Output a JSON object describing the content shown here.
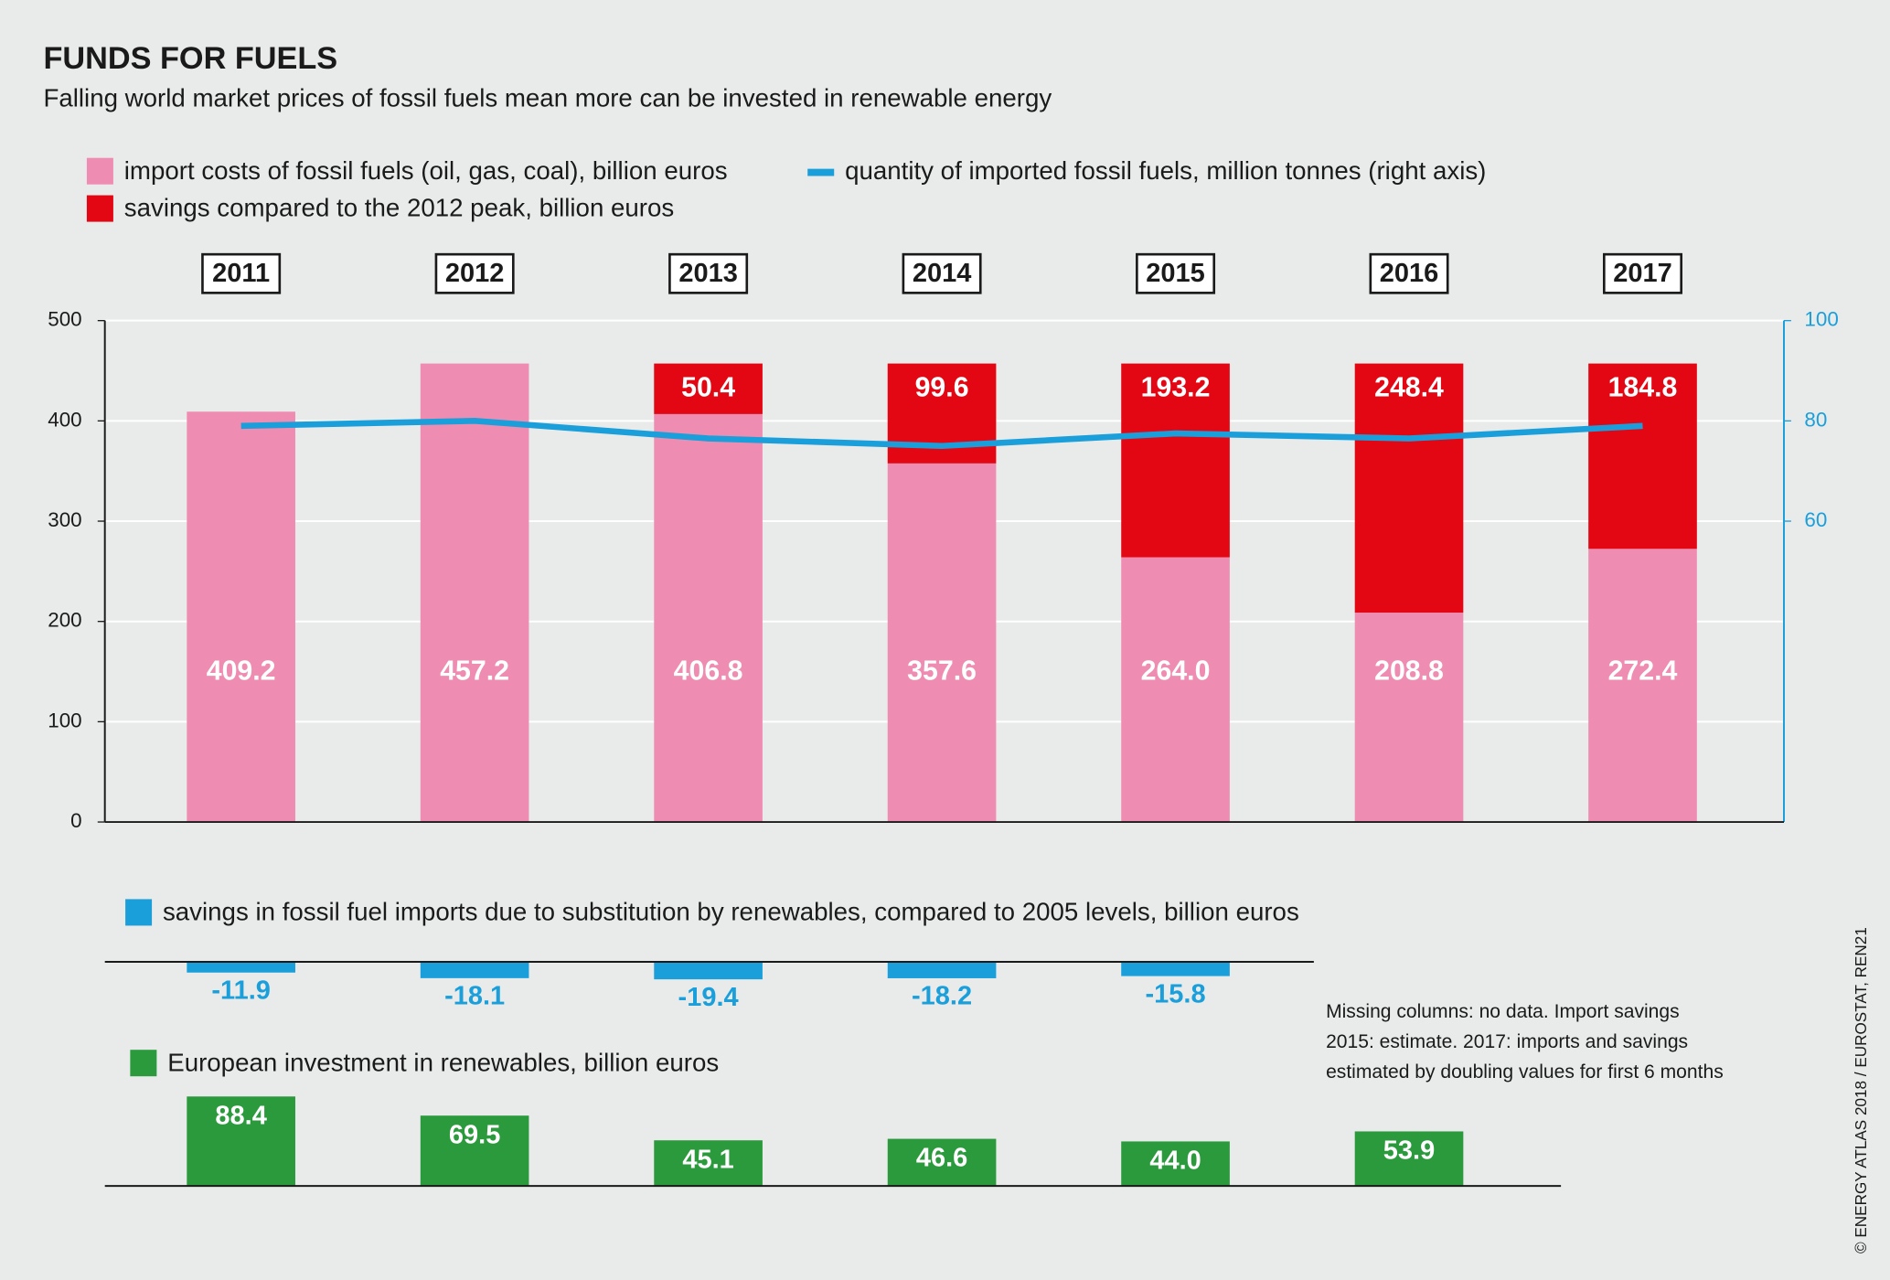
{
  "chart_data": [
    {
      "type": "bar",
      "stacked": true,
      "title": "FUNDS FOR FUELS",
      "subtitle": "Falling world market prices of fossil fuels mean more can be invested in renewable energy",
      "categories": [
        "2011",
        "2012",
        "2013",
        "2014",
        "2015",
        "2016",
        "2017"
      ],
      "series": [
        {
          "name": "import costs of fossil fuels (oil, gas, coal), billion euros",
          "color": "#ee8db1",
          "values": [
            409.2,
            457.2,
            406.8,
            357.6,
            264.0,
            208.8,
            272.4
          ],
          "value_labels": [
            "409.2",
            "457.2",
            "406.8",
            "357.6",
            "264.0",
            "208.8",
            "272.4"
          ]
        },
        {
          "name": "savings compared to the 2012 peak, billion euros",
          "color": "#e30613",
          "values": [
            null,
            null,
            50.4,
            99.6,
            193.2,
            248.4,
            184.8
          ],
          "value_labels": [
            null,
            null,
            "50.4",
            "99.6",
            "193.2",
            "248.4",
            "184.8"
          ]
        },
        {
          "name": "quantity of imported fossil fuels, million tonnes (right axis)",
          "color": "#1a9fdb",
          "type": "line",
          "axis": "y2",
          "values": [
            79,
            80,
            76.5,
            75,
            77.5,
            76.5,
            79
          ]
        }
      ],
      "ylim": [
        0,
        500
      ],
      "yticks": [
        0,
        100,
        200,
        300,
        400,
        500
      ],
      "y2lim": [
        0,
        100
      ],
      "y2ticks": [
        60,
        80,
        100
      ],
      "grid": true,
      "note": [
        "Missing columns: no data. Import savings",
        "2015: estimate. 2017: imports and savings",
        "estimated by doubling values for first 6 months"
      ],
      "source": "© ENERGY ATLAS 2018 / EUROSTAT, REN21"
    },
    {
      "type": "bar",
      "series": [
        {
          "name": "savings in fossil fuel imports due to substitution by renewables, compared to 2005 levels, billion euros",
          "color": "#1a9fdb",
          "values": [
            -11.9,
            -18.1,
            -19.4,
            -18.2,
            -15.8,
            null,
            null
          ]
        }
      ],
      "ylim": [
        -40,
        0
      ]
    },
    {
      "type": "bar",
      "series": [
        {
          "name": "European investment in renewables, billion euros",
          "color": "#2a9a3c",
          "values": [
            88.4,
            69.5,
            45.1,
            46.6,
            44.0,
            53.9,
            null
          ],
          "value_labels": [
            "88.4",
            "69.5",
            "45.1",
            "46.6",
            "44.0",
            "53.9",
            null
          ]
        }
      ],
      "ylim": [
        0,
        100
      ]
    }
  ]
}
